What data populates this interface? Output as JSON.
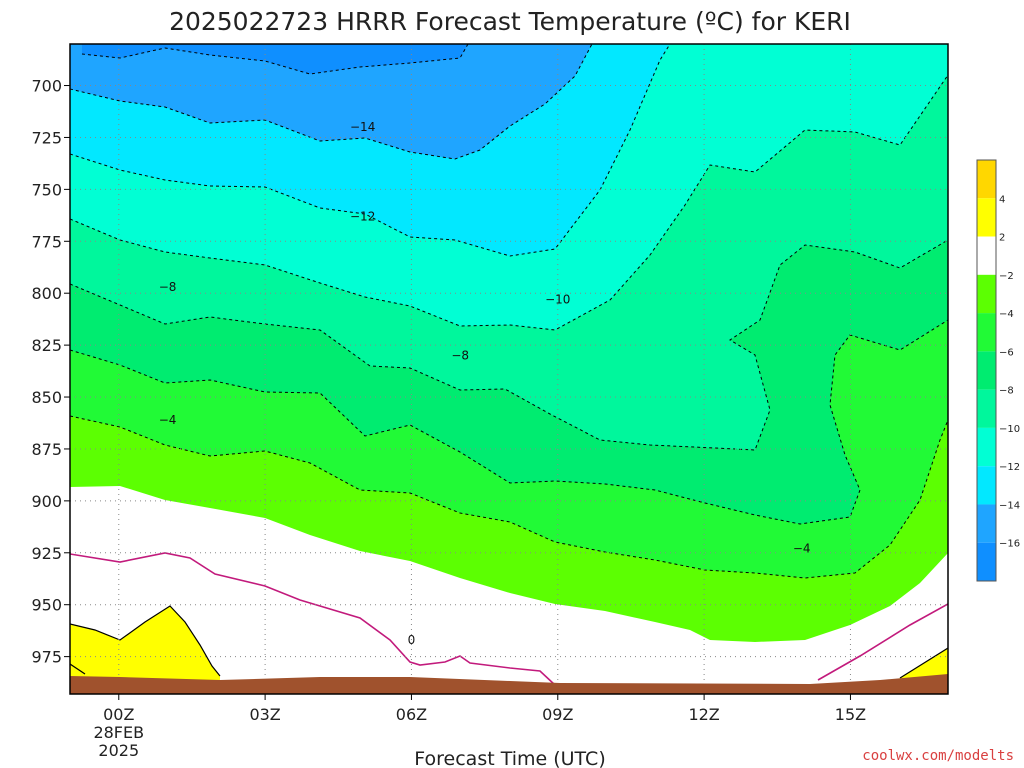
{
  "header": {
    "title": "2025022723 HRRR Forecast Temperature (ºC) for KERI"
  },
  "footer": {
    "credit": "coolwx.com/modelts"
  },
  "chart_data": {
    "type": "contour",
    "title": "2025022723 HRRR Forecast Temperature (ºC) for KERI",
    "xlabel": "Forecast Time (UTC)",
    "ylabel": "",
    "x_range_hours": [
      -1,
      17
    ],
    "y_range_hPa": [
      680,
      993
    ],
    "x_ticks": [
      {
        "hour": 0,
        "label": "00Z",
        "sub": [
          "28FEB",
          "2025"
        ]
      },
      {
        "hour": 3,
        "label": "03Z",
        "sub": []
      },
      {
        "hour": 6,
        "label": "06Z",
        "sub": []
      },
      {
        "hour": 9,
        "label": "09Z",
        "sub": []
      },
      {
        "hour": 12,
        "label": "12Z",
        "sub": []
      },
      {
        "hour": 15,
        "label": "15Z",
        "sub": []
      }
    ],
    "y_ticks": [
      700,
      725,
      750,
      775,
      800,
      825,
      850,
      875,
      900,
      925,
      950,
      975
    ],
    "grid": true,
    "colorbar": {
      "position": "right",
      "labels": [
        "4",
        "2",
        "−2",
        "−4",
        "−6",
        "−8",
        "−10",
        "−12",
        "−14",
        "−16"
      ]
    },
    "contour_labels": [
      {
        "text": "−14",
        "hour": 5.0,
        "p": 720
      },
      {
        "text": "−12",
        "hour": 5.0,
        "p": 763
      },
      {
        "text": "−8",
        "hour": 1.0,
        "p": 797
      },
      {
        "text": "−10",
        "hour": 9.0,
        "p": 803
      },
      {
        "text": "−8",
        "hour": 7.0,
        "p": 830
      },
      {
        "text": "−4",
        "hour": 1.0,
        "p": 861
      },
      {
        "text": "−4",
        "hour": 14.0,
        "p": 923
      },
      {
        "text": "0",
        "hour": 6.0,
        "p": 967
      }
    ],
    "colors": {
      "le_m16": "#0f8fff",
      "m16_m14": "#1fa5ff",
      "m14_m12": "#02e8ff",
      "m12_m10": "#01ffd4",
      "m10_m8": "#00f79c",
      "m8_m6": "#00ec70",
      "m6_m4": "#21fa36",
      "m4_m2": "#5cff02",
      "m2_2": "#ffffff",
      "2_4": "#ffff00",
      "ge_4": "#ffd700",
      "terrain": "#a0522d",
      "zero_line": "#c21a7c"
    }
  }
}
